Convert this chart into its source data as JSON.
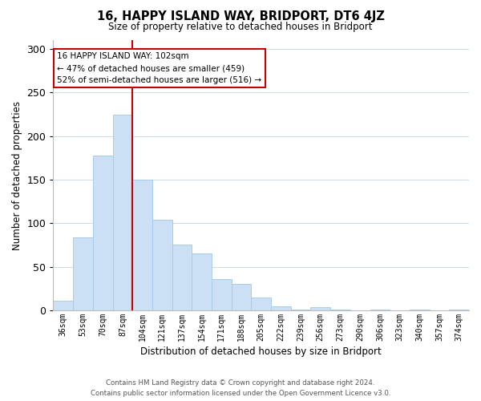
{
  "title": "16, HAPPY ISLAND WAY, BRIDPORT, DT6 4JZ",
  "subtitle": "Size of property relative to detached houses in Bridport",
  "xlabel": "Distribution of detached houses by size in Bridport",
  "ylabel": "Number of detached properties",
  "bar_labels": [
    "36sqm",
    "53sqm",
    "70sqm",
    "87sqm",
    "104sqm",
    "121sqm",
    "137sqm",
    "154sqm",
    "171sqm",
    "188sqm",
    "205sqm",
    "222sqm",
    "239sqm",
    "256sqm",
    "273sqm",
    "290sqm",
    "306sqm",
    "323sqm",
    "340sqm",
    "357sqm",
    "374sqm"
  ],
  "bar_values": [
    11,
    84,
    178,
    224,
    150,
    104,
    75,
    65,
    36,
    30,
    15,
    5,
    1,
    4,
    1,
    0,
    1,
    0,
    1,
    0,
    1
  ],
  "bar_color": "#cce0f5",
  "bar_edge_color": "#aacce8",
  "vline_x": 3.5,
  "vline_color": "#cc0000",
  "ylim": [
    0,
    310
  ],
  "yticks": [
    0,
    50,
    100,
    150,
    200,
    250,
    300
  ],
  "annotation_title": "16 HAPPY ISLAND WAY: 102sqm",
  "annotation_line1": "← 47% of detached houses are smaller (459)",
  "annotation_line2": "52% of semi-detached houses are larger (516) →",
  "footer_line1": "Contains HM Land Registry data © Crown copyright and database right 2024.",
  "footer_line2": "Contains public sector information licensed under the Open Government Licence v3.0.",
  "background_color": "#ffffff",
  "grid_color": "#d0dce8"
}
